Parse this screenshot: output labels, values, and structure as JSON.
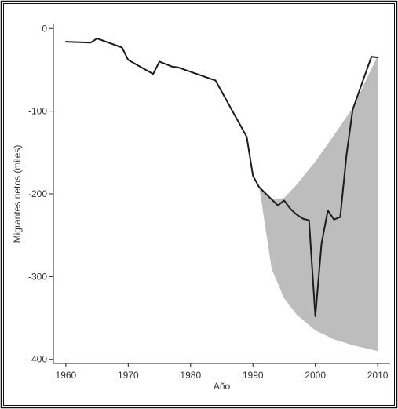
{
  "chart_data": {
    "type": "line",
    "title": "",
    "xlabel": "Año",
    "ylabel": "Migrantes netos (miles)",
    "xlim": [
      1958,
      2012
    ],
    "ylim": [
      -405,
      5
    ],
    "x_ticks": [
      1960,
      1970,
      1980,
      1990,
      2000,
      2010
    ],
    "y_ticks": [
      0,
      -100,
      -200,
      -300,
      -400
    ],
    "x_tick_labels": [
      "1960",
      "1970",
      "1980",
      "1990",
      "2000",
      "2010"
    ],
    "y_tick_labels": [
      "0",
      "-100",
      "-200",
      "-300",
      "-400"
    ],
    "grid": false,
    "legend": false,
    "series": [
      {
        "type": "line",
        "color": "#1c1c1c",
        "x": [
          1960,
          1964,
          1965,
          1969,
          1970,
          1974,
          1975,
          1977,
          1978,
          1984,
          1989,
          1990,
          1991,
          1994,
          1995,
          1996,
          1997,
          1998,
          1999,
          2000,
          2001,
          2002,
          2003,
          2004,
          2005,
          2006,
          2009,
          2010
        ],
        "y": [
          -16,
          -17,
          -12,
          -23,
          -38,
          -55,
          -40,
          -46,
          -47,
          -63,
          -131,
          -178,
          -192,
          -214,
          -208,
          -218,
          -225,
          -230,
          -232,
          -348,
          -260,
          -220,
          -231,
          -228,
          -153,
          -98,
          -34,
          -35
        ]
      }
    ],
    "band": {
      "color": "#bdbdbd",
      "x": [
        1991,
        1993,
        1995,
        1997,
        2000,
        2003,
        2006,
        2010
      ],
      "upper": [
        -190,
        -207,
        -205,
        -189,
        -161,
        -129,
        -96,
        -33
      ],
      "lower": [
        -191,
        -291,
        -326,
        -346,
        -365,
        -376,
        -383,
        -390
      ]
    }
  }
}
